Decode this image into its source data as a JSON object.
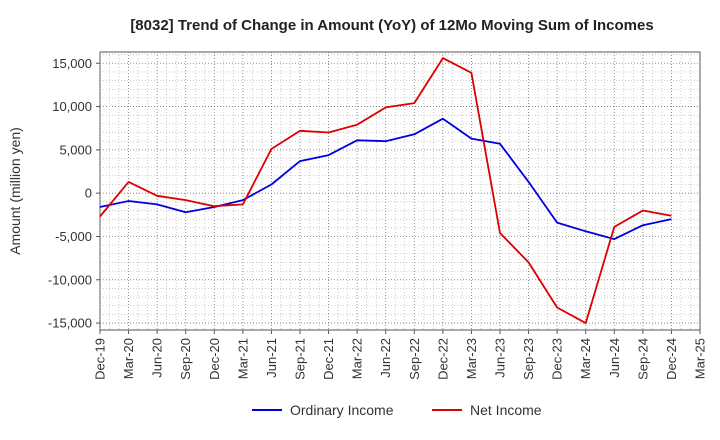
{
  "chart_data": {
    "type": "line",
    "title": "[8032]  Trend of Change in Amount (YoY) of 12Mo Moving Sum of Incomes",
    "xlabel": "",
    "ylabel": "Amount (million yen)",
    "categories": [
      "Dec-19",
      "Mar-20",
      "Jun-20",
      "Sep-20",
      "Dec-20",
      "Mar-21",
      "Jun-21",
      "Sep-21",
      "Dec-21",
      "Mar-22",
      "Jun-22",
      "Sep-22",
      "Dec-22",
      "Mar-23",
      "Jun-23",
      "Sep-23",
      "Dec-23",
      "Mar-24",
      "Jun-24",
      "Sep-24",
      "Dec-24",
      "Mar-25"
    ],
    "ylim": [
      -15800,
      16300
    ],
    "yticks": [
      15000,
      10000,
      5000,
      0,
      -5000,
      -10000,
      -15000
    ],
    "ytick_labels": [
      "15,000",
      "10,000",
      "5,000",
      "0",
      "-5,000",
      "-10,000",
      "-15,000"
    ],
    "grid": true,
    "legend_position": "bottom-center",
    "series": [
      {
        "name": "Ordinary Income",
        "color": "#0000dd",
        "values": [
          -1600,
          -900,
          -1300,
          -2200,
          -1600,
          -800,
          1000,
          3700,
          4400,
          6100,
          6000,
          6800,
          8600,
          6300,
          5700,
          1300,
          -3400,
          -4400,
          -5300,
          -3700,
          -3000,
          null
        ]
      },
      {
        "name": "Net Income",
        "color": "#dd0000",
        "values": [
          -2700,
          1300,
          -300,
          -800,
          -1500,
          -1300,
          5100,
          7200,
          7000,
          7900,
          9900,
          10400,
          15600,
          13900,
          -4600,
          -8000,
          -13200,
          -15000,
          -3900,
          -2000,
          -2600,
          null
        ]
      }
    ]
  }
}
